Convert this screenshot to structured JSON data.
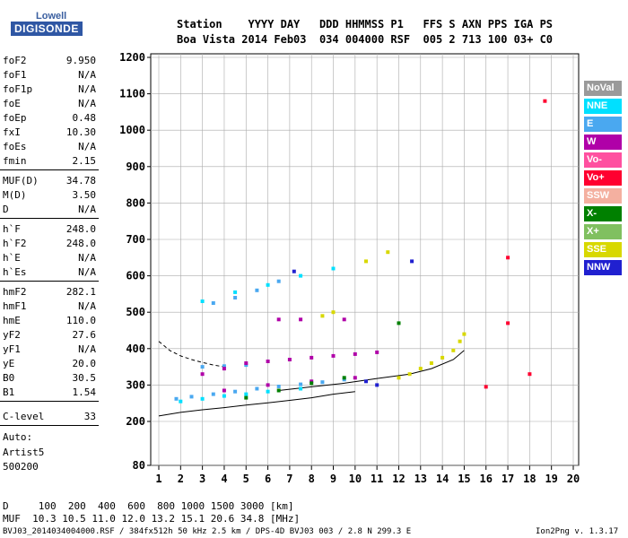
{
  "logo": {
    "top": "Lowell",
    "bottom": "DIGISONDE"
  },
  "header": {
    "labels": "Station    YYYY DAY   DDD HHMMSS P1   FFS S AXN PPS IGA PS",
    "values": "Boa Vista 2014 Feb03  034 004000 RSF  005 2 713 100 03+ C0"
  },
  "params": [
    {
      "name": "foF2",
      "value": "9.950"
    },
    {
      "name": "foF1",
      "value": "N/A"
    },
    {
      "name": "foF1p",
      "value": "N/A"
    },
    {
      "name": "foE",
      "value": "N/A"
    },
    {
      "name": "foEp",
      "value": "0.48"
    },
    {
      "name": "fxI",
      "value": "10.30"
    },
    {
      "name": "foEs",
      "value": "N/A"
    },
    {
      "name": "fmin",
      "value": "2.15"
    },
    {
      "name": "MUF(D)",
      "value": "34.78"
    },
    {
      "name": "M(D)",
      "value": "3.50"
    },
    {
      "name": "D",
      "value": "N/A"
    },
    {
      "name": "h`F",
      "value": "248.0"
    },
    {
      "name": "h`F2",
      "value": "248.0"
    },
    {
      "name": "h`E",
      "value": "N/A"
    },
    {
      "name": "h`Es",
      "value": "N/A"
    },
    {
      "name": "hmF2",
      "value": "282.1"
    },
    {
      "name": "hmF1",
      "value": "N/A"
    },
    {
      "name": "hmE",
      "value": "110.0"
    },
    {
      "name": "yF2",
      "value": "27.6"
    },
    {
      "name": "yF1",
      "value": "N/A"
    },
    {
      "name": "yE",
      "value": "20.0"
    },
    {
      "name": "B0",
      "value": "30.5"
    },
    {
      "name": "B1",
      "value": "1.54"
    },
    {
      "name": "C-level",
      "value": "33"
    }
  ],
  "auto": {
    "line1": "Auto:",
    "line2": "Artist5",
    "line3": "500200"
  },
  "legend": [
    {
      "label": "NoVal",
      "color": "#9a9a9a"
    },
    {
      "label": "NNE",
      "color": "#00e0ff"
    },
    {
      "label": "E",
      "color": "#4aa8f0"
    },
    {
      "label": "W",
      "color": "#b000a8"
    },
    {
      "label": "Vo-",
      "color": "#ff50a0"
    },
    {
      "label": "Vo+",
      "color": "#ff0030"
    },
    {
      "label": "SSW",
      "color": "#f4b0a0"
    },
    {
      "label": "X-",
      "color": "#008000"
    },
    {
      "label": "X+",
      "color": "#80c060"
    },
    {
      "label": "SSE",
      "color": "#d8d800"
    },
    {
      "label": "NNW",
      "color": "#2020d0"
    }
  ],
  "footer": {
    "row1": "D     100  200  400  600  800 1000 1500 3000 [km]",
    "row2": "MUF  10.3 10.5 11.0 12.0 13.2 15.1 20.6 34.8 [MHz]",
    "row3": "BVJ03_2014034004000.RSF / 384fx512h 50 kHz 2.5 km / DPS-4D BVJ03 003 / 2.8 N 299.3 E",
    "version": "Ion2Png v. 1.3.17"
  },
  "chart_data": {
    "type": "scatter",
    "xlabel": "",
    "ylabel": "",
    "xlim": [
      1,
      20
    ],
    "ylim": [
      80,
      1200
    ],
    "x_ticks": [
      1,
      2,
      3,
      4,
      5,
      6,
      7,
      8,
      9,
      10,
      11,
      12,
      13,
      14,
      15,
      16,
      17,
      18,
      19,
      20
    ],
    "y_ticks": [
      80,
      200,
      300,
      400,
      500,
      600,
      700,
      800,
      900,
      1000,
      1100,
      1200
    ],
    "grid": true,
    "series": [
      {
        "name": "E",
        "color": "#4aa8f0",
        "points": [
          [
            1.8,
            262
          ],
          [
            2.5,
            268
          ],
          [
            3.5,
            275
          ],
          [
            4.5,
            282
          ],
          [
            5.5,
            290
          ],
          [
            6.5,
            296
          ],
          [
            7.5,
            302
          ],
          [
            8.5,
            308
          ],
          [
            9.5,
            315
          ],
          [
            3,
            350
          ],
          [
            4,
            352
          ],
          [
            5,
            355
          ],
          [
            3.5,
            525
          ],
          [
            4.5,
            540
          ],
          [
            5.5,
            560
          ],
          [
            6.5,
            585
          ]
        ]
      },
      {
        "name": "W",
        "color": "#b000a8",
        "points": [
          [
            3,
            330
          ],
          [
            4,
            345
          ],
          [
            5,
            360
          ],
          [
            6,
            365
          ],
          [
            7,
            370
          ],
          [
            8,
            375
          ],
          [
            9,
            380
          ],
          [
            10,
            385
          ],
          [
            11,
            390
          ],
          [
            4,
            285
          ],
          [
            6,
            300
          ],
          [
            8,
            310
          ],
          [
            10,
            320
          ],
          [
            6.5,
            480
          ],
          [
            7.5,
            480
          ],
          [
            9.5,
            480
          ]
        ]
      },
      {
        "name": "NNE",
        "color": "#00e0ff",
        "points": [
          [
            2,
            255
          ],
          [
            3,
            262
          ],
          [
            4,
            270
          ],
          [
            5,
            275
          ],
          [
            6,
            282
          ],
          [
            7.5,
            290
          ],
          [
            3,
            530
          ],
          [
            4.5,
            555
          ],
          [
            6,
            575
          ],
          [
            7.5,
            600
          ],
          [
            9,
            620
          ]
        ]
      },
      {
        "name": "SSE",
        "color": "#d8d800",
        "points": [
          [
            12,
            320
          ],
          [
            12.5,
            330
          ],
          [
            13,
            345
          ],
          [
            13.5,
            360
          ],
          [
            14,
            375
          ],
          [
            14.5,
            395
          ],
          [
            14.8,
            420
          ],
          [
            15,
            440
          ],
          [
            10.5,
            640
          ],
          [
            11.5,
            665
          ],
          [
            8.5,
            490
          ],
          [
            9,
            500
          ]
        ]
      },
      {
        "name": "X-",
        "color": "#008000",
        "points": [
          [
            5,
            265
          ],
          [
            6.5,
            285
          ],
          [
            8,
            305
          ],
          [
            9.5,
            320
          ],
          [
            12,
            470
          ]
        ]
      },
      {
        "name": "Vo+",
        "color": "#ff0030",
        "points": [
          [
            16,
            295
          ],
          [
            17,
            470
          ],
          [
            17,
            650
          ],
          [
            18,
            330
          ],
          [
            18.7,
            1080
          ]
        ]
      },
      {
        "name": "NNW",
        "color": "#2020d0",
        "points": [
          [
            7.2,
            612
          ],
          [
            10.5,
            310
          ],
          [
            11,
            300
          ],
          [
            12.6,
            640
          ]
        ]
      }
    ],
    "curves": [
      {
        "style": "solid",
        "points": [
          [
            1,
            215
          ],
          [
            2,
            225
          ],
          [
            3,
            232
          ],
          [
            4,
            238
          ],
          [
            5,
            245
          ],
          [
            6,
            251
          ],
          [
            7,
            258
          ],
          [
            8,
            265
          ],
          [
            9,
            275
          ],
          [
            10,
            282
          ]
        ]
      },
      {
        "style": "dashed",
        "points": [
          [
            1,
            420
          ],
          [
            1.5,
            395
          ],
          [
            2,
            380
          ],
          [
            2.5,
            370
          ],
          [
            3,
            362
          ],
          [
            3.5,
            355
          ],
          [
            4,
            350
          ]
        ]
      },
      {
        "style": "solid",
        "points": [
          [
            6.5,
            285
          ],
          [
            8,
            295
          ],
          [
            9.5,
            305
          ],
          [
            11,
            318
          ],
          [
            12.5,
            330
          ],
          [
            13.5,
            345
          ],
          [
            14.5,
            370
          ],
          [
            15,
            395
          ]
        ]
      }
    ]
  }
}
